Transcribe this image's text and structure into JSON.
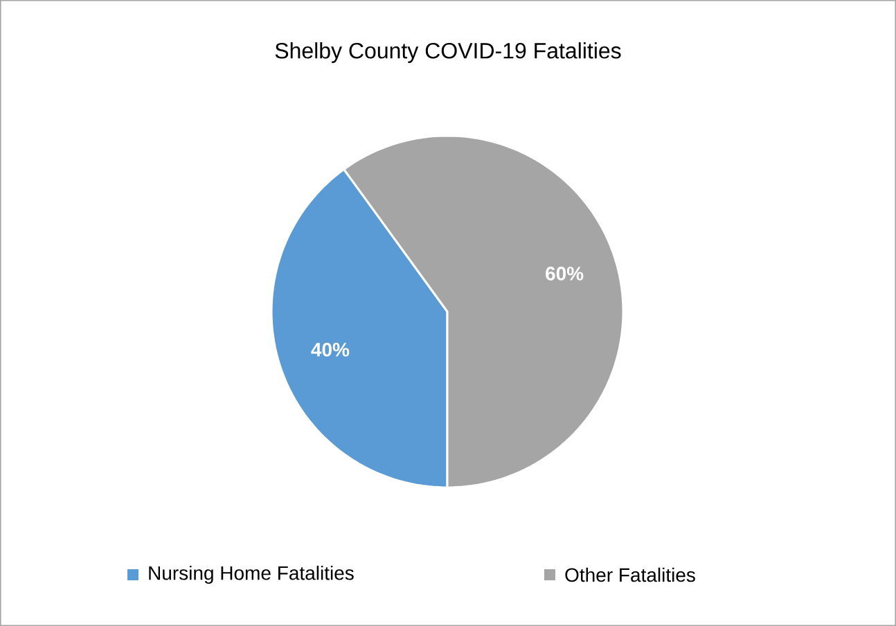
{
  "chart_data": {
    "type": "pie",
    "title": "Shelby County COVID-19 Fatalities",
    "categories": [
      "Nursing Home Fatalities",
      "Other Fatalities"
    ],
    "values": [
      40,
      60
    ],
    "colors": [
      "#5b9bd5",
      "#a5a5a5"
    ],
    "value_labels": [
      "40%",
      "60%"
    ],
    "legend": "bottom"
  }
}
